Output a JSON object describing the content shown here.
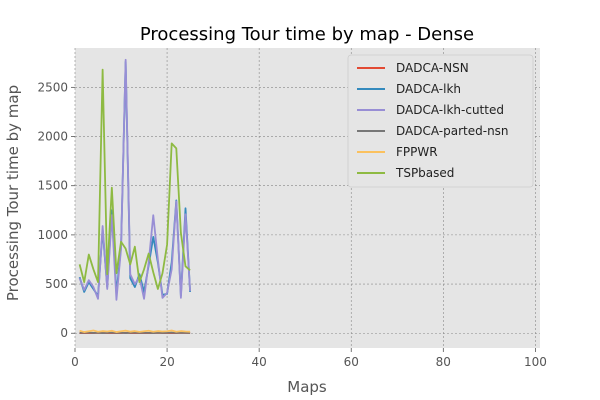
{
  "chart_data": {
    "type": "line",
    "title": "Processing Tour time by map - Dense",
    "xlabel": "Maps",
    "ylabel": "Processing Tour time by map",
    "xlim": [
      0,
      101
    ],
    "ylim": [
      -150,
      2900
    ],
    "xticks": [
      0,
      20,
      40,
      60,
      80,
      100
    ],
    "yticks": [
      0,
      500,
      1000,
      1500,
      2000,
      2500
    ],
    "grid": true,
    "legend_position": "top-right",
    "x": [
      1,
      2,
      3,
      4,
      5,
      6,
      7,
      8,
      9,
      10,
      11,
      12,
      13,
      14,
      15,
      16,
      17,
      18,
      19,
      20,
      21,
      22,
      23,
      24,
      25
    ],
    "series": [
      {
        "name": "DADCA-NSN",
        "color": "#E24A33",
        "values": [
          2,
          3,
          1,
          2,
          4,
          3,
          2,
          1,
          3,
          2,
          4,
          2,
          3,
          1,
          2,
          3,
          2,
          4,
          1,
          2,
          3,
          2,
          4,
          3,
          2
        ]
      },
      {
        "name": "DADCA-lkh",
        "color": "#348ABD",
        "values": [
          570,
          420,
          520,
          450,
          380,
          1050,
          470,
          1250,
          400,
          880,
          2760,
          560,
          470,
          600,
          420,
          690,
          980,
          720,
          390,
          400,
          720,
          1350,
          380,
          1270,
          420
        ]
      },
      {
        "name": "DADCA-lkh-cutted",
        "color": "#988ED5",
        "values": [
          560,
          440,
          540,
          470,
          350,
          1090,
          450,
          1200,
          340,
          860,
          2780,
          600,
          500,
          570,
          350,
          720,
          1200,
          750,
          360,
          410,
          650,
          1340,
          360,
          1210,
          430
        ]
      },
      {
        "name": "DADCA-parted-nsn",
        "color": "#777777",
        "values": [
          5,
          4,
          6,
          3,
          5,
          2,
          4,
          6,
          3,
          5,
          2,
          4,
          6,
          3,
          5,
          4,
          2,
          5,
          3,
          4,
          6,
          3,
          5,
          4,
          3
        ]
      },
      {
        "name": "FPPWR",
        "color": "#FBC15E",
        "values": [
          25,
          12,
          20,
          28,
          15,
          22,
          18,
          25,
          12,
          20,
          26,
          16,
          22,
          14,
          20,
          25,
          15,
          22,
          18,
          20,
          28,
          15,
          22,
          18,
          16
        ]
      },
      {
        "name": "TSPbased",
        "color": "#8EBA42",
        "values": [
          700,
          520,
          800,
          650,
          520,
          2680,
          600,
          1480,
          610,
          930,
          860,
          700,
          880,
          520,
          650,
          810,
          620,
          450,
          610,
          900,
          1930,
          1880,
          1020,
          680,
          640
        ]
      }
    ]
  }
}
